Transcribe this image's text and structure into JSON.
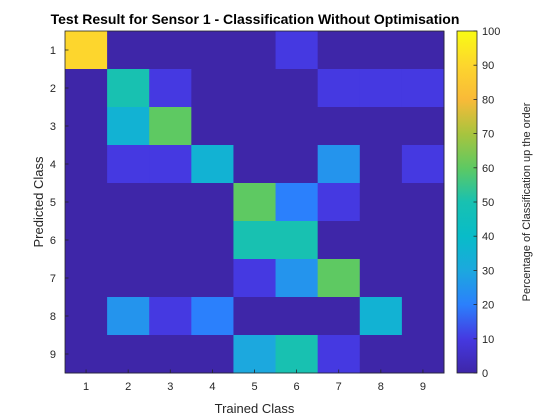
{
  "chart_data": {
    "type": "heatmap",
    "title": "Test Result for Sensor 1 - Classification Without Optimisation",
    "xlabel": "Trained Class",
    "ylabel": "Predicted Class",
    "x_categories": [
      "1",
      "2",
      "3",
      "4",
      "5",
      "6",
      "7",
      "8",
      "9"
    ],
    "y_categories": [
      "1",
      "2",
      "3",
      "4",
      "5",
      "6",
      "7",
      "8",
      "9"
    ],
    "values": [
      [
        90,
        0,
        0,
        0,
        0,
        10,
        0,
        0,
        0
      ],
      [
        0,
        50,
        10,
        0,
        0,
        0,
        10,
        10,
        10
      ],
      [
        0,
        35,
        60,
        0,
        0,
        0,
        0,
        0,
        0
      ],
      [
        0,
        10,
        10,
        35,
        0,
        0,
        25,
        0,
        10
      ],
      [
        0,
        0,
        0,
        0,
        60,
        20,
        10,
        0,
        0
      ],
      [
        0,
        0,
        0,
        0,
        50,
        50,
        0,
        0,
        0
      ],
      [
        0,
        0,
        0,
        0,
        10,
        25,
        60,
        0,
        0
      ],
      [
        0,
        25,
        10,
        20,
        0,
        0,
        0,
        35,
        0
      ],
      [
        0,
        0,
        0,
        0,
        30,
        50,
        10,
        0,
        0
      ]
    ],
    "colorbar": {
      "label": "Percentage of Classification up the order",
      "range": [
        0,
        100
      ],
      "ticks": [
        "0",
        "10",
        "20",
        "30",
        "40",
        "50",
        "60",
        "70",
        "80",
        "90",
        "100"
      ],
      "colormap": "parula"
    },
    "grid": false
  }
}
